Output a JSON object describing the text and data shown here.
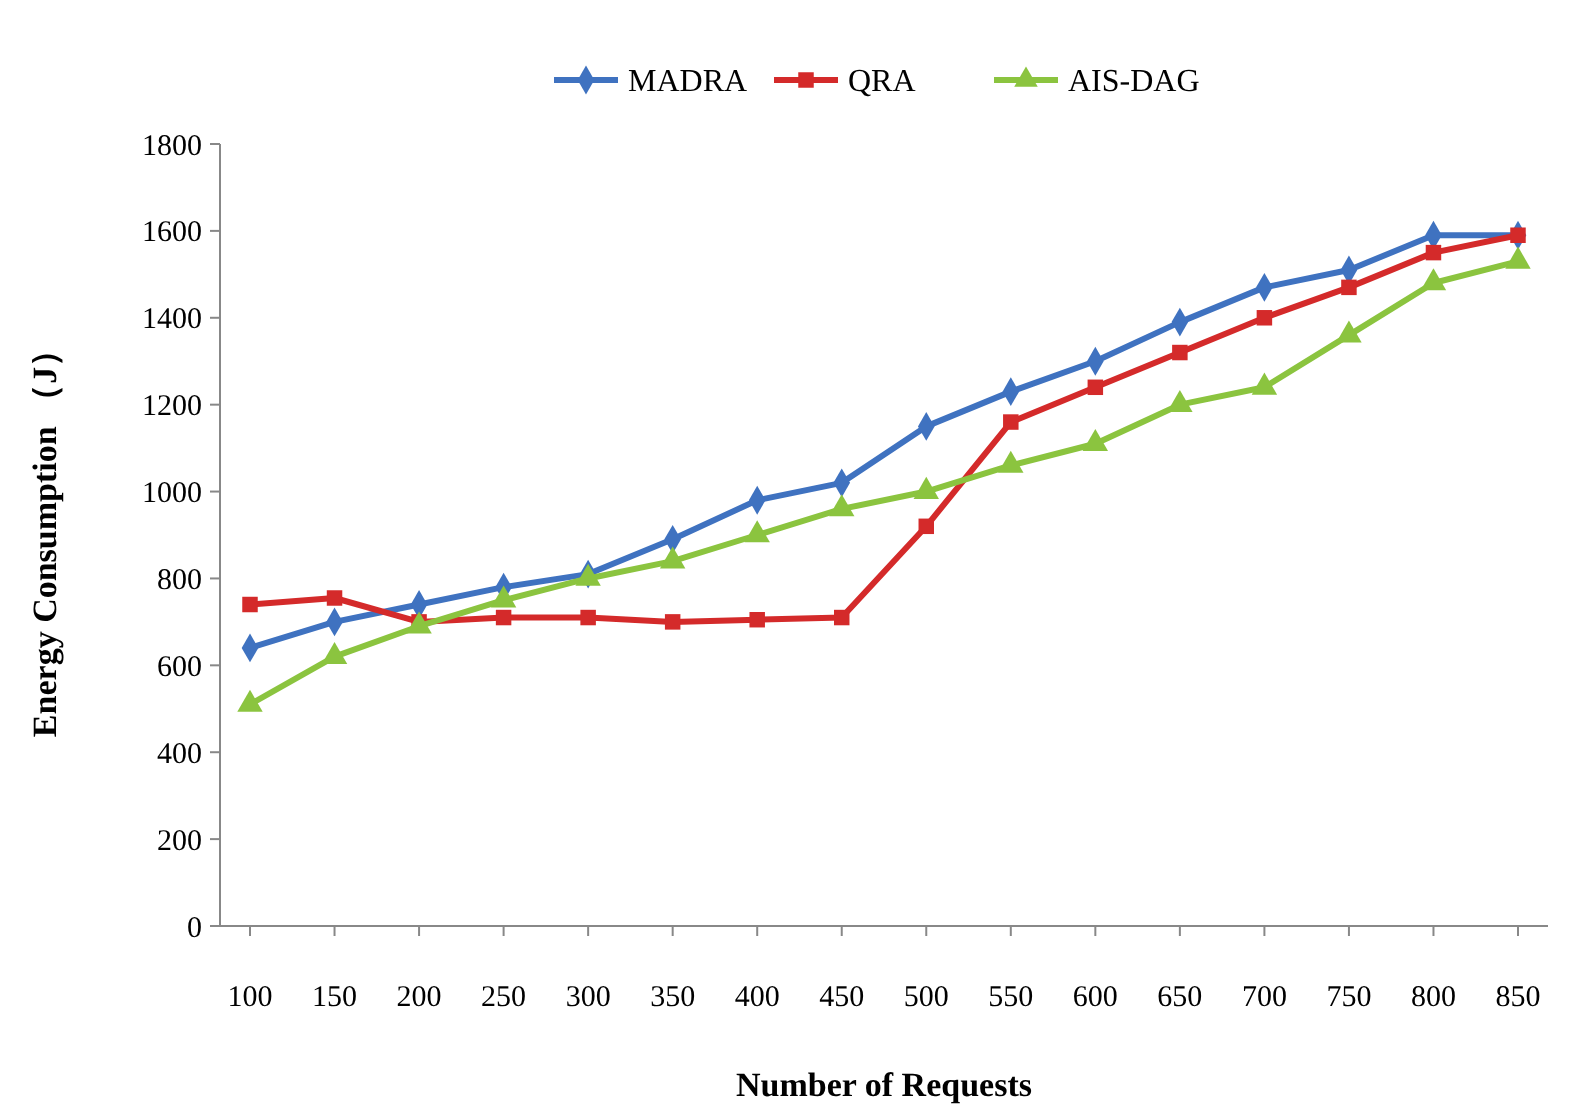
{
  "chart_data": {
    "type": "line",
    "xlabel": "Number of Requests",
    "ylabel": "Energy Consumption （J）",
    "categories": [
      "100",
      "150",
      "200",
      "250",
      "300",
      "350",
      "400",
      "450",
      "500",
      "550",
      "600",
      "650",
      "700",
      "750",
      "800",
      "850"
    ],
    "series": [
      {
        "name": "MADRA",
        "color": "#3f72c0",
        "marker": "diamond",
        "values": [
          640,
          700,
          740,
          780,
          810,
          890,
          980,
          1020,
          1150,
          1230,
          1300,
          1390,
          1470,
          1510,
          1590,
          1590
        ]
      },
      {
        "name": "QRA",
        "color": "#d42a2a",
        "marker": "square",
        "values": [
          740,
          755,
          700,
          710,
          710,
          700,
          705,
          710,
          920,
          1160,
          1240,
          1320,
          1400,
          1470,
          1550,
          1590
        ]
      },
      {
        "name": "AIS-DAG",
        "color": "#8bc43f",
        "marker": "triangle",
        "values": [
          510,
          620,
          690,
          750,
          800,
          840,
          900,
          960,
          1000,
          1060,
          1110,
          1200,
          1240,
          1360,
          1480,
          1530
        ]
      }
    ],
    "ylim": [
      0,
      1800
    ],
    "yticks": [
      0,
      200,
      400,
      600,
      800,
      1000,
      1200,
      1400,
      1600,
      1800
    ],
    "grid": false,
    "legend": "top"
  }
}
